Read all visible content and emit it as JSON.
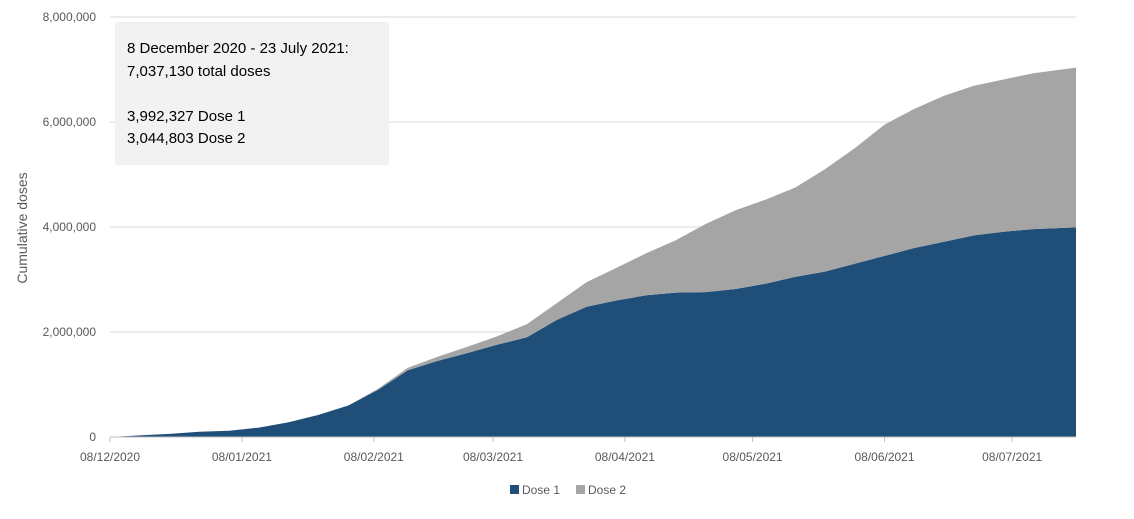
{
  "chart_data": {
    "type": "area",
    "stacked": true,
    "ylabel": "Cumulative doses",
    "xlabel": "",
    "ylim": [
      0,
      8000000
    ],
    "yticks": [
      0,
      2000000,
      4000000,
      6000000,
      8000000
    ],
    "ytick_labels": [
      "0",
      "2,000,000",
      "4,000,000",
      "6,000,000",
      "8,000,000"
    ],
    "xlim": [
      "2020-12-08",
      "2021-07-23"
    ],
    "xticks": [
      "2020-12-08",
      "2021-01-08",
      "2021-02-08",
      "2021-03-08",
      "2021-04-08",
      "2021-05-08",
      "2021-06-08",
      "2021-07-08"
    ],
    "xtick_labels": [
      "08/12/2020",
      "08/01/2021",
      "08/02/2021",
      "08/03/2021",
      "08/04/2021",
      "08/05/2021",
      "08/06/2021",
      "08/07/2021"
    ],
    "grid": "horizontal",
    "legend_position": "bottom",
    "x": [
      "2020-12-08",
      "2020-12-15",
      "2020-12-22",
      "2020-12-29",
      "2021-01-05",
      "2021-01-12",
      "2021-01-19",
      "2021-01-26",
      "2021-02-02",
      "2021-02-09",
      "2021-02-16",
      "2021-02-23",
      "2021-03-02",
      "2021-03-09",
      "2021-03-16",
      "2021-03-23",
      "2021-03-30",
      "2021-04-06",
      "2021-04-13",
      "2021-04-20",
      "2021-04-27",
      "2021-05-04",
      "2021-05-11",
      "2021-05-18",
      "2021-05-25",
      "2021-06-01",
      "2021-06-08",
      "2021-06-15",
      "2021-06-22",
      "2021-06-29",
      "2021-07-06",
      "2021-07-13",
      "2021-07-23"
    ],
    "series": [
      {
        "name": "Dose 1",
        "color": "#1f4e79",
        "values": [
          0,
          30000,
          60000,
          100000,
          120000,
          180000,
          280000,
          420000,
          600000,
          900000,
          1270000,
          1450000,
          1600000,
          1760000,
          1900000,
          2230000,
          2480000,
          2600000,
          2700000,
          2750000,
          2760000,
          2820000,
          2920000,
          3050000,
          3150000,
          3300000,
          3450000,
          3600000,
          3720000,
          3840000,
          3910000,
          3960000,
          3992327
        ]
      },
      {
        "name": "Dose 2",
        "color": "#a5a5a5",
        "values": [
          0,
          0,
          0,
          0,
          0,
          0,
          0,
          0,
          0,
          20000,
          50000,
          80000,
          120000,
          160000,
          250000,
          320000,
          470000,
          620000,
          800000,
          1000000,
          1300000,
          1500000,
          1600000,
          1700000,
          1950000,
          2200000,
          2500000,
          2650000,
          2780000,
          2850000,
          2900000,
          2970000,
          3044803
        ]
      }
    ],
    "annotation": {
      "lines": [
        "8 December  2020 - 23 July  2021:",
        "7,037,130  total doses",
        "",
        "3,992,327  Dose 1",
        "3,044,803  Dose 2"
      ],
      "box_color": "#f2f2f2"
    },
    "colors": {
      "grid": "#d9d9d9",
      "axis": "#bfbfbf",
      "text": "#595959"
    }
  }
}
